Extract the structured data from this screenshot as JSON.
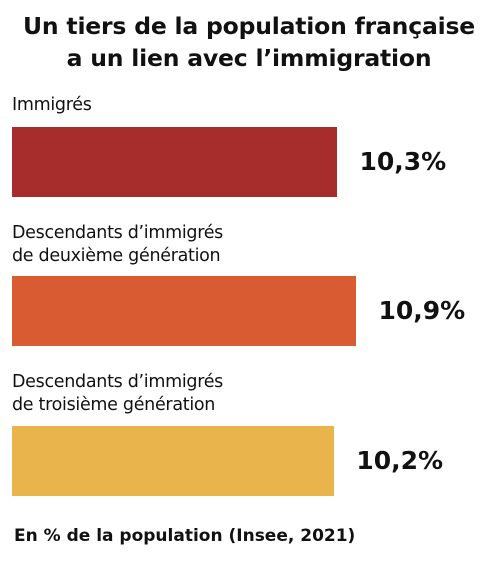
{
  "chart_data": {
    "type": "bar",
    "orientation": "horizontal",
    "title_lines": [
      "Un tiers de la population française",
      "a un lien avec l’immigration"
    ],
    "categories": [
      [
        "Immigrés"
      ],
      [
        "Descendants d’immigrés",
        "de deuxième génération"
      ],
      [
        "Descendants d’immigrés",
        "de troisième génération"
      ]
    ],
    "values": [
      10.3,
      10.9,
      10.2
    ],
    "value_labels": [
      "10,3%",
      "10,9%",
      "10,2%"
    ],
    "colors": [
      "#a72d2d",
      "#d85b32",
      "#e9b44c"
    ],
    "footer": "En % de la population (Insee, 2021)",
    "grid": false,
    "legend": "none"
  }
}
